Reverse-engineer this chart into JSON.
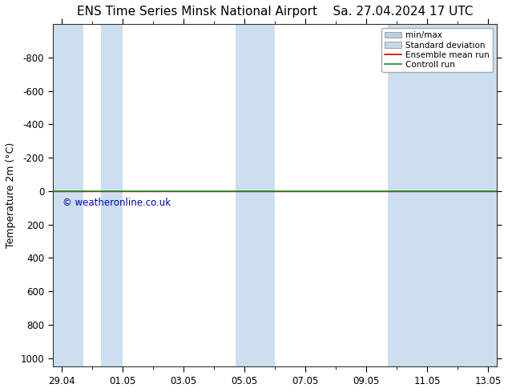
{
  "title_left": "ENS Time Series Minsk National Airport",
  "title_right": "Sa. 27.04.2024 17 UTC",
  "ylabel": "Temperature 2m (°C)",
  "ylim_top": -1000,
  "ylim_bottom": 1050,
  "yticks": [
    -800,
    -600,
    -400,
    -200,
    0,
    200,
    400,
    600,
    800,
    1000
  ],
  "x_dates": [
    "29.04",
    "01.05",
    "03.05",
    "05.05",
    "07.05",
    "09.05",
    "11.05",
    "13.05"
  ],
  "x_positions": [
    0,
    2,
    4,
    6,
    8,
    10,
    12,
    14
  ],
  "xlim": [
    -0.3,
    14.3
  ],
  "bg_color": "#ffffff",
  "plot_bg_color": "#ffffff",
  "band_color": "#ccdff0",
  "band_specs": [
    {
      "start": -0.3,
      "end": 0.7
    },
    {
      "start": 1.3,
      "end": 2.0
    },
    {
      "start": 5.7,
      "end": 7.0
    },
    {
      "start": 10.7,
      "end": 14.3
    }
  ],
  "control_run_color": "#228B22",
  "ensemble_mean_color": "#cc0000",
  "minmax_color": "#b8cfe0",
  "stddev_color": "#c8d8e8",
  "zero_line_y": 0,
  "copyright_text": "© weatheronline.co.uk",
  "copyright_color": "#0000bb",
  "title_fontsize": 11,
  "axis_label_fontsize": 9,
  "tick_fontsize": 8.5
}
